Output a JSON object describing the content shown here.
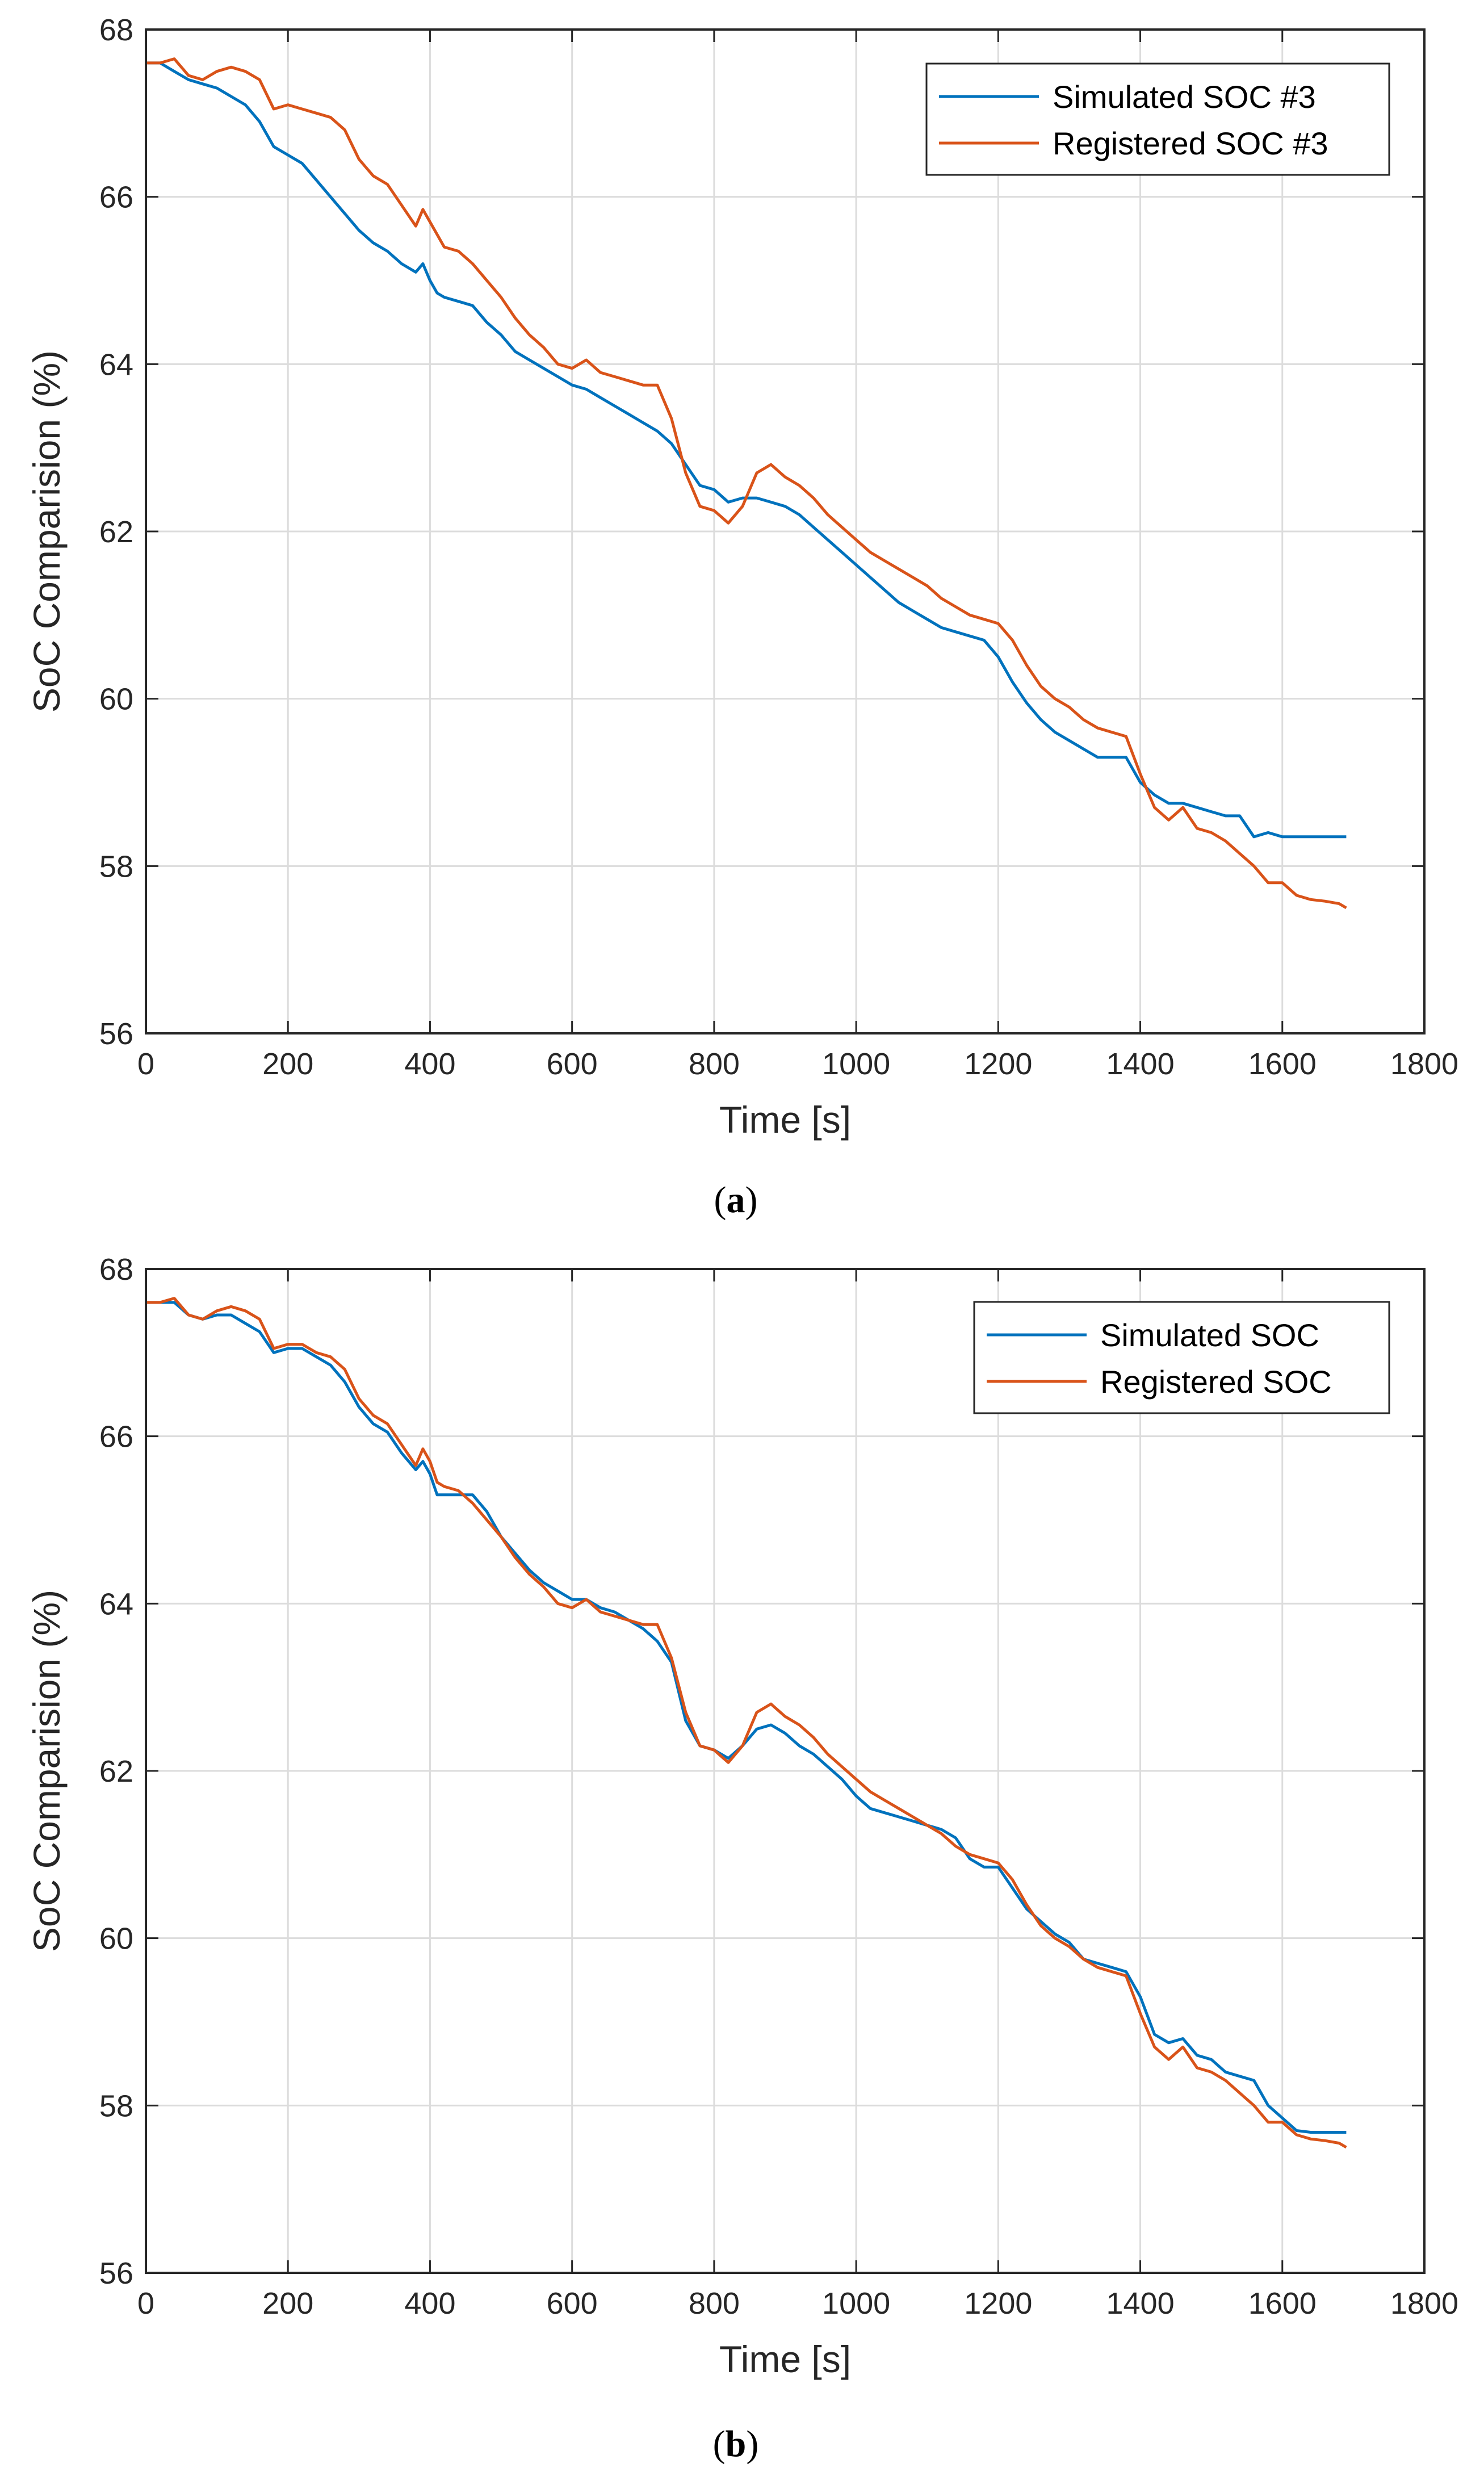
{
  "colors": {
    "simulated": "#0072BD",
    "registered": "#D95319",
    "grid": "#dcdcdc",
    "axis": "#262626"
  },
  "chart_data": [
    {
      "type": "line",
      "caption_open": "(",
      "caption_letter": "a",
      "caption_close": ")",
      "xlabel": "Time [s]",
      "ylabel": "SoC Comparision (%)",
      "xlim": [
        0,
        1800
      ],
      "ylim": [
        56,
        68
      ],
      "xticks": [
        "0",
        "200",
        "400",
        "600",
        "800",
        "1000",
        "1200",
        "1400",
        "1600",
        "1800"
      ],
      "yticks": [
        "56",
        "58",
        "60",
        "62",
        "64",
        "66",
        "68"
      ],
      "grid": true,
      "legend_position": "top-right",
      "series": [
        {
          "name": "Simulated SOC #3",
          "color": "#0072BD",
          "x": [
            0,
            20,
            40,
            60,
            80,
            100,
            120,
            140,
            160,
            180,
            200,
            220,
            240,
            260,
            280,
            300,
            320,
            340,
            360,
            380,
            390,
            400,
            410,
            420,
            440,
            460,
            480,
            500,
            520,
            540,
            560,
            580,
            600,
            620,
            640,
            660,
            680,
            700,
            720,
            740,
            760,
            780,
            800,
            820,
            840,
            860,
            880,
            900,
            920,
            940,
            960,
            980,
            1000,
            1020,
            1040,
            1060,
            1080,
            1100,
            1120,
            1140,
            1160,
            1180,
            1200,
            1220,
            1240,
            1260,
            1280,
            1300,
            1320,
            1340,
            1360,
            1380,
            1400,
            1420,
            1440,
            1460,
            1480,
            1500,
            1520,
            1540,
            1560,
            1580,
            1600,
            1620,
            1640,
            1660,
            1680,
            1690
          ],
          "values": [
            67.6,
            67.6,
            67.5,
            67.4,
            67.35,
            67.3,
            67.2,
            67.1,
            66.9,
            66.6,
            66.5,
            66.4,
            66.2,
            66.0,
            65.8,
            65.6,
            65.45,
            65.35,
            65.2,
            65.1,
            65.2,
            65.0,
            64.85,
            64.8,
            64.75,
            64.7,
            64.5,
            64.35,
            64.15,
            64.05,
            63.95,
            63.85,
            63.75,
            63.7,
            63.6,
            63.5,
            63.4,
            63.3,
            63.2,
            63.05,
            62.8,
            62.55,
            62.5,
            62.35,
            62.4,
            62.4,
            62.35,
            62.3,
            62.2,
            62.05,
            61.9,
            61.75,
            61.6,
            61.45,
            61.3,
            61.15,
            61.05,
            60.95,
            60.85,
            60.8,
            60.75,
            60.7,
            60.5,
            60.2,
            59.95,
            59.75,
            59.6,
            59.5,
            59.4,
            59.3,
            59.3,
            59.3,
            59.0,
            58.85,
            58.75,
            58.75,
            58.7,
            58.65,
            58.6,
            58.6,
            58.35,
            58.4,
            58.35,
            58.35,
            58.35,
            58.35,
            58.35,
            58.35
          ]
        },
        {
          "name": "Registered SOC #3",
          "color": "#D95319",
          "x": [
            0,
            20,
            40,
            60,
            80,
            100,
            120,
            140,
            160,
            180,
            200,
            220,
            240,
            260,
            280,
            300,
            320,
            340,
            360,
            380,
            390,
            400,
            410,
            420,
            440,
            460,
            480,
            500,
            520,
            540,
            560,
            580,
            600,
            620,
            640,
            660,
            680,
            700,
            720,
            740,
            760,
            780,
            800,
            820,
            840,
            860,
            880,
            900,
            920,
            940,
            960,
            980,
            1000,
            1020,
            1040,
            1060,
            1080,
            1100,
            1120,
            1140,
            1160,
            1180,
            1200,
            1220,
            1240,
            1260,
            1280,
            1300,
            1320,
            1340,
            1360,
            1380,
            1400,
            1420,
            1440,
            1460,
            1480,
            1500,
            1520,
            1540,
            1560,
            1580,
            1600,
            1620,
            1640,
            1660,
            1680,
            1690
          ],
          "values": [
            67.6,
            67.6,
            67.65,
            67.45,
            67.4,
            67.5,
            67.55,
            67.5,
            67.4,
            67.05,
            67.1,
            67.05,
            67.0,
            66.95,
            66.8,
            66.45,
            66.25,
            66.15,
            65.9,
            65.65,
            65.85,
            65.7,
            65.55,
            65.4,
            65.35,
            65.2,
            65.0,
            64.8,
            64.55,
            64.35,
            64.2,
            64.0,
            63.95,
            64.05,
            63.9,
            63.85,
            63.8,
            63.75,
            63.75,
            63.35,
            62.7,
            62.3,
            62.25,
            62.1,
            62.3,
            62.7,
            62.8,
            62.65,
            62.55,
            62.4,
            62.2,
            62.05,
            61.9,
            61.75,
            61.65,
            61.55,
            61.45,
            61.35,
            61.2,
            61.1,
            61.0,
            60.95,
            60.9,
            60.7,
            60.4,
            60.15,
            60.0,
            59.9,
            59.75,
            59.65,
            59.6,
            59.55,
            59.1,
            58.7,
            58.55,
            58.7,
            58.45,
            58.4,
            58.3,
            58.15,
            58.0,
            57.8,
            57.8,
            57.65,
            57.6,
            57.58,
            57.55,
            57.5
          ]
        }
      ]
    },
    {
      "type": "line",
      "caption_open": "(",
      "caption_letter": "b",
      "caption_close": ")",
      "xlabel": "Time [s]",
      "ylabel": "SoC Comparision (%)",
      "xlim": [
        0,
        1800
      ],
      "ylim": [
        56,
        68
      ],
      "xticks": [
        "0",
        "200",
        "400",
        "600",
        "800",
        "1000",
        "1200",
        "1400",
        "1600",
        "1800"
      ],
      "yticks": [
        "56",
        "58",
        "60",
        "62",
        "64",
        "66",
        "68"
      ],
      "grid": true,
      "legend_position": "top-right",
      "series": [
        {
          "name": "Simulated SOC",
          "color": "#0072BD",
          "x": [
            0,
            20,
            40,
            60,
            80,
            100,
            120,
            140,
            160,
            180,
            200,
            220,
            240,
            260,
            280,
            300,
            320,
            340,
            360,
            380,
            390,
            400,
            410,
            420,
            440,
            460,
            480,
            500,
            520,
            540,
            560,
            580,
            600,
            620,
            640,
            660,
            680,
            700,
            720,
            740,
            760,
            780,
            800,
            820,
            840,
            860,
            880,
            900,
            920,
            940,
            960,
            980,
            1000,
            1020,
            1040,
            1060,
            1080,
            1100,
            1120,
            1140,
            1160,
            1180,
            1200,
            1220,
            1240,
            1260,
            1280,
            1300,
            1320,
            1340,
            1360,
            1380,
            1400,
            1420,
            1440,
            1460,
            1480,
            1500,
            1520,
            1540,
            1560,
            1580,
            1600,
            1620,
            1640,
            1660,
            1680,
            1690
          ],
          "values": [
            67.6,
            67.6,
            67.6,
            67.45,
            67.4,
            67.45,
            67.45,
            67.35,
            67.25,
            67.0,
            67.05,
            67.05,
            66.95,
            66.85,
            66.65,
            66.35,
            66.15,
            66.05,
            65.8,
            65.6,
            65.7,
            65.55,
            65.3,
            65.3,
            65.3,
            65.3,
            65.1,
            64.8,
            64.6,
            64.4,
            64.25,
            64.15,
            64.05,
            64.05,
            63.95,
            63.9,
            63.8,
            63.7,
            63.55,
            63.3,
            62.6,
            62.3,
            62.25,
            62.15,
            62.3,
            62.5,
            62.55,
            62.45,
            62.3,
            62.2,
            62.05,
            61.9,
            61.7,
            61.55,
            61.5,
            61.45,
            61.4,
            61.35,
            61.3,
            61.2,
            60.95,
            60.85,
            60.85,
            60.6,
            60.35,
            60.2,
            60.05,
            59.95,
            59.75,
            59.7,
            59.65,
            59.6,
            59.3,
            58.85,
            58.75,
            58.8,
            58.6,
            58.55,
            58.4,
            58.35,
            58.3,
            58.0,
            57.85,
            57.7,
            57.68,
            57.68,
            57.68,
            57.68
          ]
        },
        {
          "name": "Registered SOC",
          "color": "#D95319",
          "x": [
            0,
            20,
            40,
            60,
            80,
            100,
            120,
            140,
            160,
            180,
            200,
            220,
            240,
            260,
            280,
            300,
            320,
            340,
            360,
            380,
            390,
            400,
            410,
            420,
            440,
            460,
            480,
            500,
            520,
            540,
            560,
            580,
            600,
            620,
            640,
            660,
            680,
            700,
            720,
            740,
            760,
            780,
            800,
            820,
            840,
            860,
            880,
            900,
            920,
            940,
            960,
            980,
            1000,
            1020,
            1040,
            1060,
            1080,
            1100,
            1120,
            1140,
            1160,
            1180,
            1200,
            1220,
            1240,
            1260,
            1280,
            1300,
            1320,
            1340,
            1360,
            1380,
            1400,
            1420,
            1440,
            1460,
            1480,
            1500,
            1520,
            1540,
            1560,
            1580,
            1600,
            1620,
            1640,
            1660,
            1680,
            1690
          ],
          "values": [
            67.6,
            67.6,
            67.65,
            67.45,
            67.4,
            67.5,
            67.55,
            67.5,
            67.4,
            67.05,
            67.1,
            67.1,
            67.0,
            66.95,
            66.8,
            66.45,
            66.25,
            66.15,
            65.9,
            65.65,
            65.85,
            65.7,
            65.45,
            65.4,
            65.35,
            65.2,
            65.0,
            64.8,
            64.55,
            64.35,
            64.2,
            64.0,
            63.95,
            64.05,
            63.9,
            63.85,
            63.8,
            63.75,
            63.75,
            63.35,
            62.7,
            62.3,
            62.25,
            62.1,
            62.3,
            62.7,
            62.8,
            62.65,
            62.55,
            62.4,
            62.2,
            62.05,
            61.9,
            61.75,
            61.65,
            61.55,
            61.45,
            61.35,
            61.25,
            61.1,
            61.0,
            60.95,
            60.9,
            60.7,
            60.4,
            60.15,
            60.0,
            59.9,
            59.75,
            59.65,
            59.6,
            59.55,
            59.1,
            58.7,
            58.55,
            58.7,
            58.45,
            58.4,
            58.3,
            58.15,
            58.0,
            57.8,
            57.8,
            57.65,
            57.6,
            57.58,
            57.55,
            57.5
          ]
        }
      ]
    }
  ]
}
